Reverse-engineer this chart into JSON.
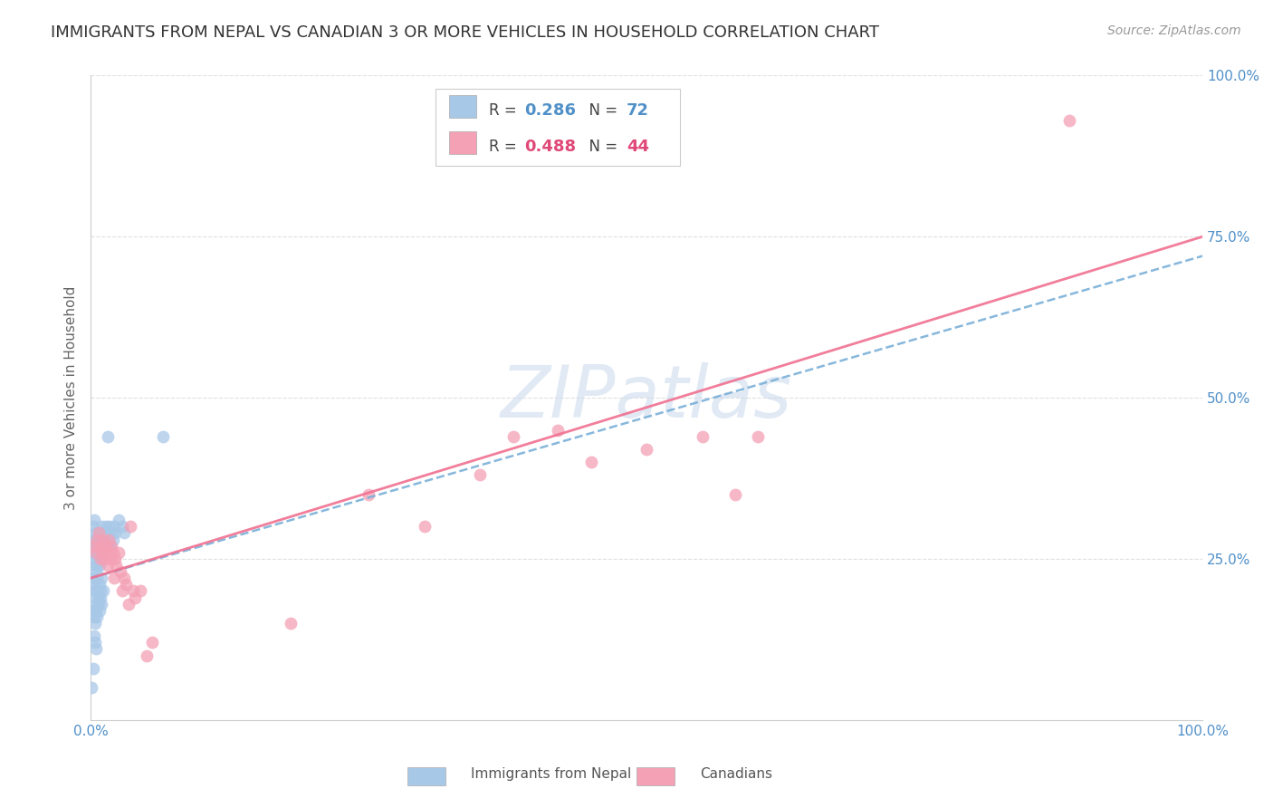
{
  "title": "IMMIGRANTS FROM NEPAL VS CANADIAN 3 OR MORE VEHICLES IN HOUSEHOLD CORRELATION CHART",
  "source": "Source: ZipAtlas.com",
  "ylabel": "3 or more Vehicles in Household",
  "legend_label1": "Immigrants from Nepal",
  "legend_label2": "Canadians",
  "r1": 0.286,
  "n1": 72,
  "r2": 0.488,
  "n2": 44,
  "xlim": [
    0,
    1
  ],
  "ylim": [
    0,
    1
  ],
  "color_blue": "#a8c8e8",
  "color_pink": "#f4a0b5",
  "color_blue_line": "#7ab0d8",
  "color_pink_line": "#f07090",
  "color_blue_text": "#5090c8",
  "color_pink_text": "#e04878",
  "watermark": "ZIPatlas",
  "background_color": "#ffffff",
  "grid_color": "#e0e0e0",
  "title_fontsize": 13,
  "source_fontsize": 10,
  "nepal_x": [
    0.001,
    0.002,
    0.002,
    0.003,
    0.003,
    0.003,
    0.004,
    0.004,
    0.004,
    0.005,
    0.005,
    0.005,
    0.006,
    0.006,
    0.006,
    0.007,
    0.007,
    0.007,
    0.008,
    0.008,
    0.008,
    0.009,
    0.009,
    0.01,
    0.01,
    0.01,
    0.011,
    0.011,
    0.012,
    0.012,
    0.013,
    0.013,
    0.014,
    0.015,
    0.015,
    0.016,
    0.017,
    0.018,
    0.019,
    0.02,
    0.001,
    0.002,
    0.003,
    0.004,
    0.005,
    0.006,
    0.007,
    0.008,
    0.009,
    0.01,
    0.002,
    0.003,
    0.004,
    0.005,
    0.006,
    0.007,
    0.008,
    0.009,
    0.01,
    0.011,
    0.003,
    0.004,
    0.005,
    0.021,
    0.022,
    0.025,
    0.028,
    0.03,
    0.065,
    0.001,
    0.002,
    0.015
  ],
  "nepal_y": [
    0.28,
    0.3,
    0.26,
    0.31,
    0.28,
    0.25,
    0.27,
    0.24,
    0.29,
    0.26,
    0.23,
    0.28,
    0.27,
    0.24,
    0.22,
    0.26,
    0.28,
    0.25,
    0.27,
    0.24,
    0.29,
    0.26,
    0.28,
    0.27,
    0.3,
    0.25,
    0.28,
    0.26,
    0.29,
    0.27,
    0.28,
    0.26,
    0.3,
    0.27,
    0.29,
    0.28,
    0.3,
    0.27,
    0.29,
    0.28,
    0.22,
    0.21,
    0.2,
    0.19,
    0.18,
    0.2,
    0.19,
    0.21,
    0.2,
    0.22,
    0.17,
    0.16,
    0.15,
    0.17,
    0.16,
    0.18,
    0.17,
    0.19,
    0.18,
    0.2,
    0.13,
    0.12,
    0.11,
    0.3,
    0.29,
    0.31,
    0.3,
    0.29,
    0.44,
    0.05,
    0.08,
    0.44
  ],
  "canada_x": [
    0.003,
    0.005,
    0.006,
    0.007,
    0.008,
    0.009,
    0.01,
    0.011,
    0.012,
    0.013,
    0.014,
    0.015,
    0.016,
    0.017,
    0.018,
    0.019,
    0.02,
    0.021,
    0.022,
    0.023,
    0.025,
    0.027,
    0.028,
    0.03,
    0.032,
    0.034,
    0.036,
    0.038,
    0.04,
    0.045,
    0.05,
    0.055,
    0.25,
    0.3,
    0.35,
    0.38,
    0.42,
    0.45,
    0.5,
    0.55,
    0.58,
    0.6,
    0.88,
    0.18
  ],
  "canada_y": [
    0.27,
    0.26,
    0.28,
    0.29,
    0.27,
    0.25,
    0.26,
    0.28,
    0.25,
    0.27,
    0.26,
    0.24,
    0.28,
    0.26,
    0.25,
    0.27,
    0.26,
    0.22,
    0.25,
    0.24,
    0.26,
    0.23,
    0.2,
    0.22,
    0.21,
    0.18,
    0.3,
    0.2,
    0.19,
    0.2,
    0.1,
    0.12,
    0.35,
    0.3,
    0.38,
    0.44,
    0.45,
    0.4,
    0.42,
    0.44,
    0.35,
    0.44,
    0.93,
    0.15
  ],
  "blue_line_x": [
    0.0,
    1.0
  ],
  "blue_line_y": [
    0.22,
    0.72
  ],
  "pink_line_x": [
    0.0,
    1.0
  ],
  "pink_line_y": [
    0.22,
    0.75
  ]
}
